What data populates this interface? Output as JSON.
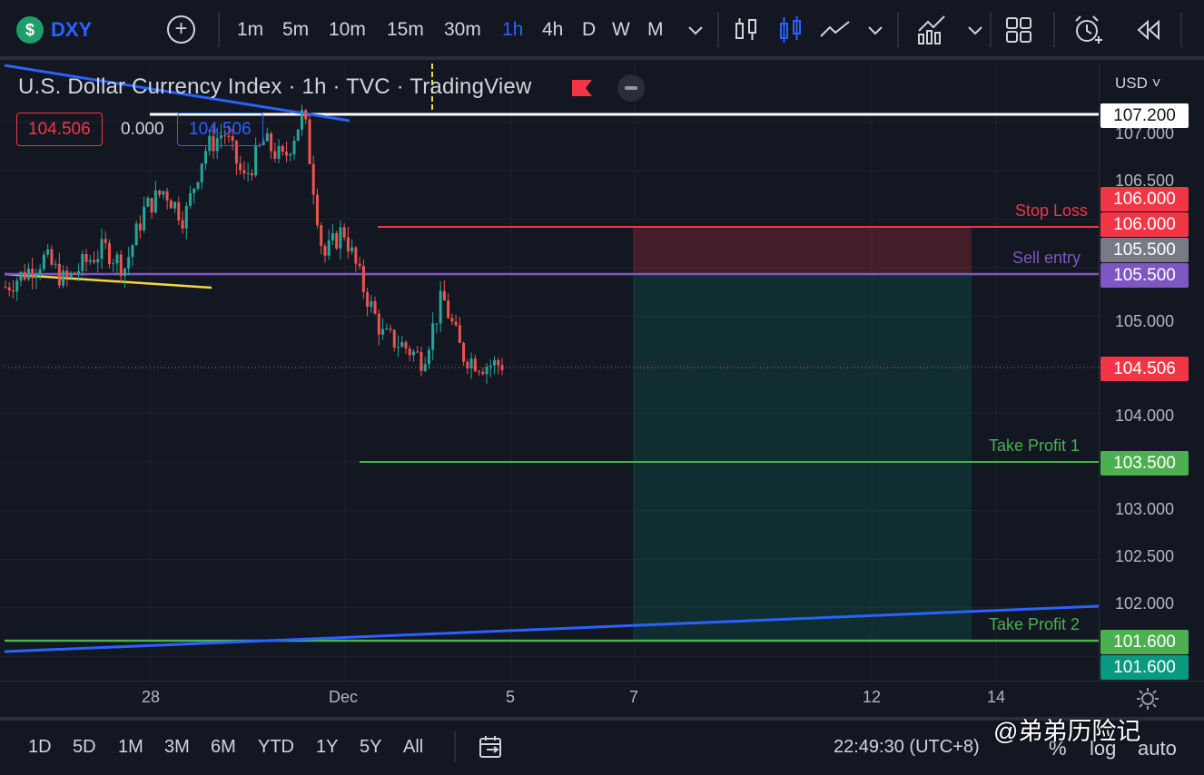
{
  "toolbar": {
    "logo_glyph": "$",
    "symbol": "DXY",
    "add_symbol": "+",
    "timeframes": [
      "1m",
      "5m",
      "10m",
      "15m",
      "30m",
      "1h",
      "4h",
      "D",
      "W",
      "M"
    ],
    "active_timeframe": "1h",
    "icons": [
      "chevron-down-icon",
      "bar-chart-icon",
      "candles-icon",
      "line-chart-icon",
      "chevron-down-icon",
      "indicators-icon",
      "chevron-down-icon",
      "layout-grid-icon",
      "alert-clock-icon",
      "replay-icon"
    ]
  },
  "legend": {
    "title": "U.S. Dollar Currency Index · 1h · TVC · TradingView",
    "sell_price": "104.506",
    "spread": "0.000",
    "buy_price": "104.506"
  },
  "price_scale": {
    "currency": "USD",
    "ticks": [
      "107.000",
      "106.500",
      "105.000",
      "104.000",
      "103.000",
      "102.500",
      "102.000"
    ],
    "tags": {
      "top_line": "107.200",
      "stop_loss_a": "106.000",
      "stop_loss_b": "106.000",
      "entry_gray": "105.500",
      "entry_purple": "105.500",
      "last_price": "104.506",
      "take_profit_1": "103.500",
      "take_profit_2a": "101.600",
      "take_profit_2b": "101.600"
    }
  },
  "annotations": {
    "stop_loss": "Stop Loss",
    "sell_entry": "Sell entry",
    "take_profit_1": "Take Profit 1",
    "take_profit_2": "Take Profit 2"
  },
  "time_axis": [
    "28",
    "Dec",
    "5",
    "7",
    "12",
    "14"
  ],
  "bottom": {
    "ranges": [
      "1D",
      "5D",
      "1M",
      "3M",
      "6M",
      "YTD",
      "1Y",
      "5Y",
      "All"
    ],
    "clock": "22:49:30 (UTC+8)",
    "percent": "%",
    "log": "log",
    "auto": "auto",
    "watermark": "@弟弟历险记"
  },
  "colors": {
    "background": "#131722",
    "up": "#26a69a",
    "down": "#ef5350",
    "stop": "#f23645",
    "entry": "#7e57c2",
    "profit": "#4caf50",
    "trend": "#2962ff",
    "support": "#f5d547"
  },
  "chart_data": {
    "type": "candlestick",
    "timeframe": "1h",
    "ylim": [
      101.25,
      107.6
    ],
    "candles_close_path": [
      105.3,
      105.45,
      105.6,
      105.35,
      105.55,
      105.7,
      105.5,
      106.1,
      106.3,
      106.0,
      106.7,
      106.9,
      106.4,
      106.8,
      106.6,
      107.1,
      105.6,
      105.9,
      105.3,
      104.8,
      104.7,
      104.55,
      105.2,
      104.6,
      104.5,
      104.506
    ],
    "levels": {
      "stop_loss": 106.0,
      "sell_entry": 105.5,
      "last_price": 104.506,
      "take_profit_1": 103.5,
      "take_profit_2": 101.6,
      "top_line": 107.2
    }
  }
}
